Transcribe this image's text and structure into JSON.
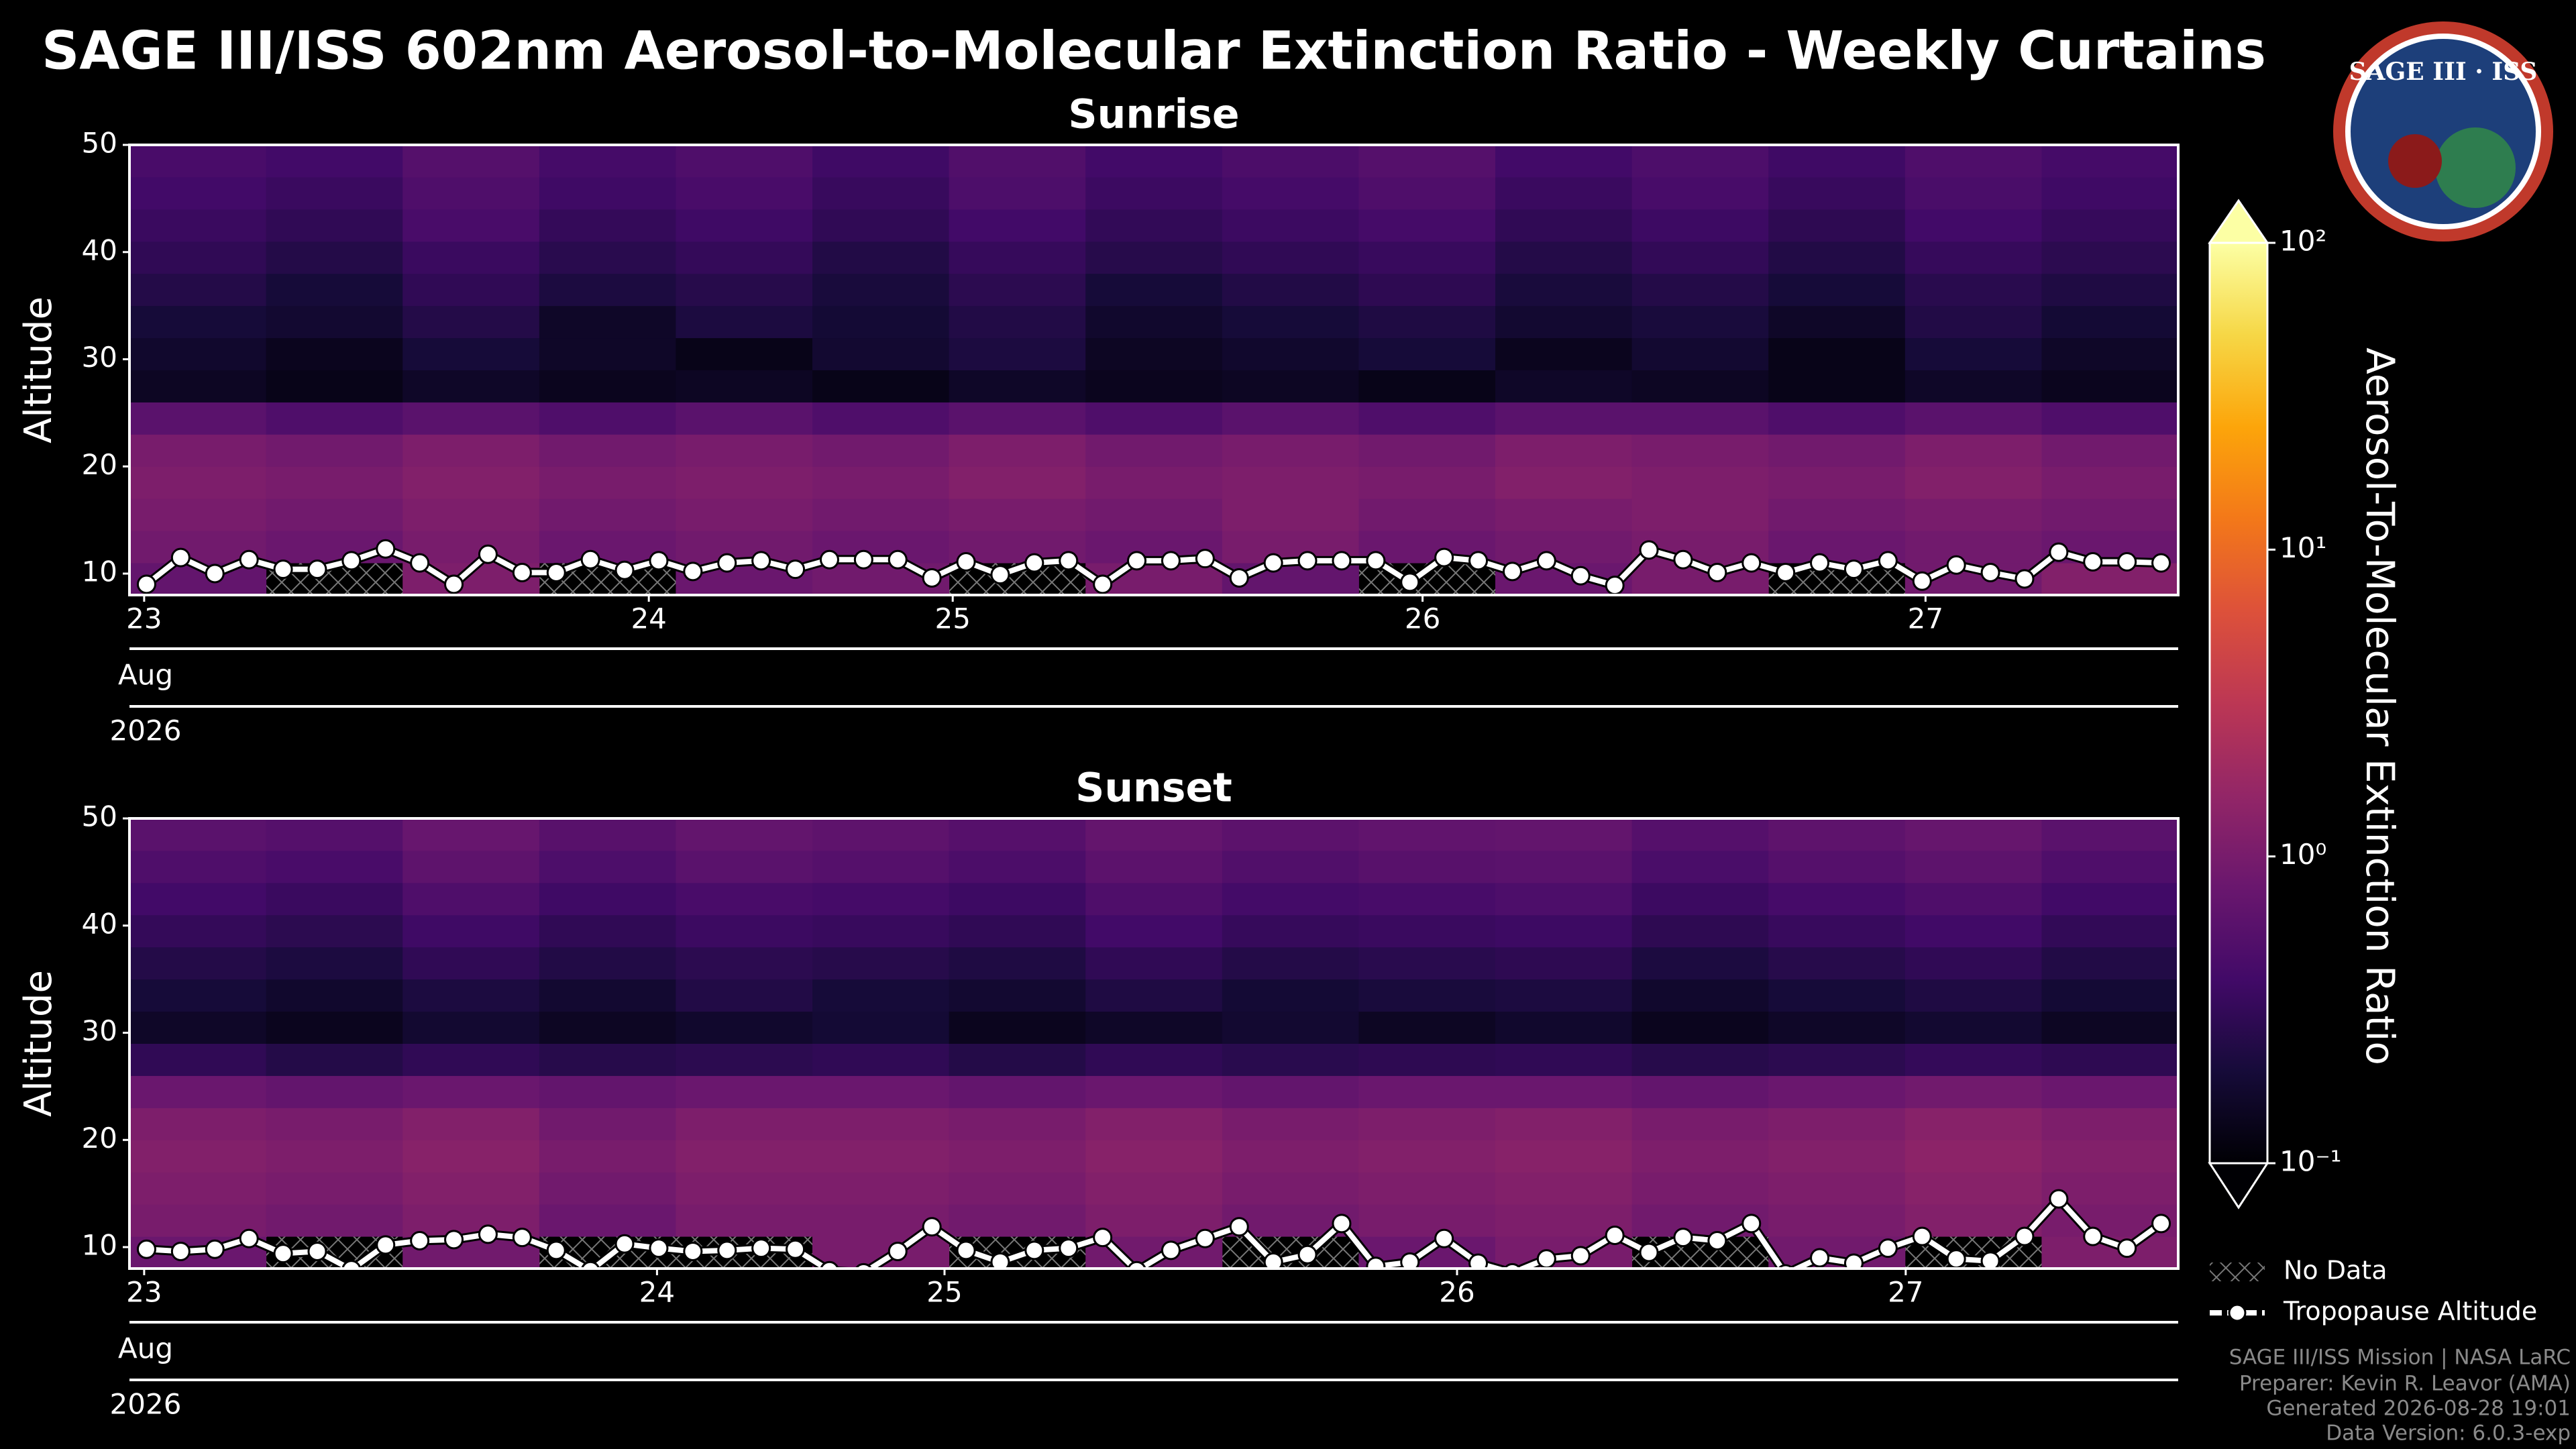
{
  "title": "SAGE III/ISS 602nm Aerosol-to-Molecular Extinction Ratio - Weekly Curtains",
  "logo": {
    "text": "SAGE III · ISS"
  },
  "colorbar": {
    "label": "Aerosol-To-Molecular Extinction Ratio",
    "colormap": "inferno",
    "scale": "log",
    "clim": [
      0.1,
      100
    ],
    "ticks": [
      {
        "value": 0.1,
        "label": "10⁻¹"
      },
      {
        "value": 1,
        "label": "10⁰"
      },
      {
        "value": 10,
        "label": "10¹"
      },
      {
        "value": 100,
        "label": "10²"
      }
    ]
  },
  "legend": {
    "no_data": "No Data"
  },
  "footer": [
    "SAGE III/ISS Mission | NASA LaRC",
    "Preparer: Kevin R. Leavor (AMA)",
    "Generated 2026-08-28 19:01",
    "Data Version: 6.0.3-exp"
  ],
  "chart_data": [
    {
      "type": "heatmap",
      "title": "Sunrise",
      "ylabel": "Altitude",
      "x_month_label": "Aug",
      "x_year_label": "2026",
      "xlim": [
        -0.5,
        59.5
      ],
      "xticks": [
        {
          "value": -0.07,
          "label": "23"
        },
        {
          "value": 14.71,
          "label": "24"
        },
        {
          "value": 23.61,
          "label": "25"
        },
        {
          "value": 37.37,
          "label": "26"
        },
        {
          "value": 52.1,
          "label": "27"
        }
      ],
      "ylim": [
        8,
        50
      ],
      "yticks": [
        10,
        20,
        30,
        40,
        50
      ],
      "x_bins": [
        -0.5,
        3.5,
        7.5,
        11.5,
        15.5,
        19.5,
        23.5,
        27.5,
        31.5,
        35.5,
        39.5,
        43.5,
        47.5,
        51.5,
        55.5,
        59.5
      ],
      "y_bins": [
        8,
        11,
        14,
        17,
        20,
        23,
        26,
        29,
        32,
        35,
        38,
        41,
        44,
        47,
        50
      ],
      "z": [
        [
          0.7,
          null,
          1.1,
          null,
          0.8,
          0.9,
          null,
          1.0,
          0.7,
          null,
          0.8,
          1.0,
          null,
          0.9,
          1.2
        ],
        [
          0.9,
          0.8,
          1.0,
          0.8,
          0.9,
          0.8,
          0.9,
          0.8,
          1.0,
          0.8,
          0.9,
          1.0,
          0.8,
          0.9,
          0.8
        ],
        [
          1.0,
          0.9,
          1.1,
          0.9,
          1.0,
          0.9,
          1.0,
          0.9,
          1.1,
          0.9,
          1.0,
          1.1,
          0.9,
          1.0,
          0.9
        ],
        [
          1.1,
          1.0,
          1.2,
          1.0,
          1.1,
          1.0,
          1.2,
          1.0,
          1.1,
          1.0,
          1.2,
          1.1,
          1.0,
          1.2,
          1.0
        ],
        [
          1.0,
          0.9,
          1.1,
          0.9,
          1.0,
          0.9,
          1.1,
          0.9,
          1.0,
          0.9,
          1.1,
          1.0,
          0.9,
          1.1,
          0.9
        ],
        [
          0.6,
          0.5,
          0.6,
          0.5,
          0.6,
          0.5,
          0.6,
          0.5,
          0.6,
          0.5,
          0.6,
          0.6,
          0.5,
          0.6,
          0.5
        ],
        [
          0.15,
          0.13,
          0.16,
          0.14,
          0.15,
          0.13,
          0.16,
          0.14,
          0.15,
          0.13,
          0.16,
          0.15,
          0.13,
          0.16,
          0.14
        ],
        [
          0.17,
          0.14,
          0.2,
          0.16,
          0.13,
          0.18,
          0.22,
          0.15,
          0.17,
          0.2,
          0.14,
          0.18,
          0.13,
          0.2,
          0.16
        ],
        [
          0.2,
          0.18,
          0.25,
          0.16,
          0.22,
          0.19,
          0.24,
          0.17,
          0.2,
          0.23,
          0.18,
          0.21,
          0.16,
          0.24,
          0.19
        ],
        [
          0.25,
          0.2,
          0.3,
          0.22,
          0.26,
          0.21,
          0.28,
          0.2,
          0.24,
          0.29,
          0.21,
          0.25,
          0.2,
          0.27,
          0.23
        ],
        [
          0.3,
          0.25,
          0.35,
          0.27,
          0.32,
          0.24,
          0.33,
          0.26,
          0.3,
          0.34,
          0.25,
          0.31,
          0.24,
          0.33,
          0.28
        ],
        [
          0.35,
          0.3,
          0.45,
          0.32,
          0.38,
          0.3,
          0.4,
          0.31,
          0.36,
          0.42,
          0.3,
          0.37,
          0.29,
          0.4,
          0.33
        ],
        [
          0.4,
          0.35,
          0.5,
          0.38,
          0.45,
          0.34,
          0.48,
          0.36,
          0.42,
          0.5,
          0.35,
          0.44,
          0.34,
          0.46,
          0.38
        ],
        [
          0.45,
          0.4,
          0.55,
          0.42,
          0.5,
          0.38,
          0.52,
          0.4,
          0.47,
          0.55,
          0.4,
          0.48,
          0.38,
          0.5,
          0.42
        ]
      ],
      "tropopause": {
        "name": "Tropopause Altitude",
        "color": "#ffffff",
        "values": [
          9,
          11.5,
          10,
          11.3,
          10.4,
          10.4,
          11.2,
          12.3,
          11,
          9,
          11.8,
          10.1,
          10.1,
          11.3,
          10.3,
          11.2,
          10.2,
          11,
          11.2,
          10.4,
          11.3,
          11.3,
          11.3,
          9.6,
          11.1,
          9.9,
          11,
          11.2,
          9,
          11.2,
          11.2,
          11.4,
          9.6,
          11,
          11.2,
          11.2,
          11.2,
          9.2,
          11.5,
          11.2,
          10.2,
          11.2,
          9.8,
          8.9,
          12.2,
          11.3,
          10.1,
          11,
          10.1,
          11,
          10.4,
          11.2,
          9.3,
          10.8,
          10.1,
          9.5,
          12,
          11.1,
          11.1,
          11
        ]
      }
    },
    {
      "type": "heatmap",
      "title": "Sunset",
      "ylabel": "Altitude",
      "x_month_label": "Aug",
      "x_year_label": "2026",
      "xlim": [
        -0.5,
        59.5
      ],
      "xticks": [
        {
          "value": -0.07,
          "label": "23"
        },
        {
          "value": 14.95,
          "label": "24"
        },
        {
          "value": 23.37,
          "label": "25"
        },
        {
          "value": 38.38,
          "label": "26"
        },
        {
          "value": 51.52,
          "label": "27"
        }
      ],
      "ylim": [
        8,
        50
      ],
      "yticks": [
        10,
        20,
        30,
        40,
        50
      ],
      "x_bins": [
        -0.5,
        3.5,
        7.5,
        11.5,
        15.5,
        19.5,
        23.5,
        27.5,
        31.5,
        35.5,
        39.5,
        43.5,
        47.5,
        51.5,
        55.5,
        59.5
      ],
      "y_bins": [
        8,
        11,
        14,
        17,
        20,
        23,
        26,
        29,
        32,
        35,
        38,
        41,
        44,
        47,
        50
      ],
      "z": [
        [
          0.8,
          null,
          0.9,
          null,
          null,
          1.0,
          null,
          0.9,
          null,
          0.8,
          1.0,
          null,
          0.9,
          null,
          1.1
        ],
        [
          1.0,
          0.9,
          1.1,
          0.8,
          1.0,
          1.0,
          0.9,
          1.1,
          0.9,
          1.0,
          1.1,
          0.9,
          1.0,
          1.2,
          1.0
        ],
        [
          1.1,
          1.0,
          1.2,
          0.9,
          1.1,
          1.1,
          1.0,
          1.2,
          1.0,
          1.1,
          1.2,
          1.0,
          1.1,
          1.3,
          1.1
        ],
        [
          1.2,
          1.1,
          1.3,
          1.0,
          1.2,
          1.2,
          1.1,
          1.3,
          1.1,
          1.2,
          1.3,
          1.1,
          1.2,
          1.4,
          1.2
        ],
        [
          1.1,
          1.0,
          1.2,
          0.9,
          1.1,
          1.1,
          1.0,
          1.2,
          1.0,
          1.1,
          1.2,
          1.0,
          1.1,
          1.3,
          1.1
        ],
        [
          0.8,
          0.7,
          0.8,
          0.7,
          0.8,
          0.8,
          0.7,
          0.8,
          0.7,
          0.8,
          0.8,
          0.7,
          0.8,
          0.9,
          0.8
        ],
        [
          0.3,
          0.25,
          0.3,
          0.26,
          0.28,
          0.3,
          0.25,
          0.3,
          0.27,
          0.29,
          0.3,
          0.26,
          0.28,
          0.32,
          0.29
        ],
        [
          0.16,
          0.14,
          0.18,
          0.15,
          0.17,
          0.19,
          0.14,
          0.16,
          0.18,
          0.15,
          0.17,
          0.14,
          0.16,
          0.18,
          0.15
        ],
        [
          0.2,
          0.17,
          0.22,
          0.18,
          0.24,
          0.2,
          0.18,
          0.23,
          0.19,
          0.21,
          0.22,
          0.17,
          0.2,
          0.23,
          0.19
        ],
        [
          0.25,
          0.22,
          0.3,
          0.24,
          0.28,
          0.26,
          0.23,
          0.3,
          0.25,
          0.27,
          0.29,
          0.22,
          0.26,
          0.3,
          0.24
        ],
        [
          0.32,
          0.28,
          0.38,
          0.3,
          0.36,
          0.34,
          0.3,
          0.4,
          0.33,
          0.35,
          0.37,
          0.29,
          0.34,
          0.39,
          0.31
        ],
        [
          0.4,
          0.35,
          0.5,
          0.38,
          0.45,
          0.42,
          0.37,
          0.5,
          0.41,
          0.44,
          0.48,
          0.36,
          0.43,
          0.5,
          0.39
        ],
        [
          0.5,
          0.45,
          0.65,
          0.48,
          0.6,
          0.55,
          0.47,
          0.62,
          0.52,
          0.58,
          0.6,
          0.46,
          0.55,
          0.64,
          0.5
        ],
        [
          0.6,
          0.55,
          0.75,
          0.58,
          0.7,
          0.65,
          0.56,
          0.72,
          0.62,
          0.68,
          0.7,
          0.55,
          0.65,
          0.74,
          0.6
        ]
      ],
      "tropopause": {
        "name": "Tropopause Altitude",
        "color": "#ffffff",
        "values": [
          9.8,
          9.6,
          9.8,
          10.8,
          9.4,
          9.6,
          7.9,
          10.2,
          10.6,
          10.7,
          11.2,
          10.9,
          9.7,
          7.8,
          10.3,
          9.9,
          9.6,
          9.7,
          9.9,
          9.8,
          7.8,
          7.6,
          9.6,
          11.9,
          9.7,
          8.6,
          9.7,
          9.9,
          10.9,
          7.8,
          9.7,
          10.8,
          11.9,
          8.6,
          9.3,
          12.2,
          8.2,
          8.6,
          10.8,
          8.5,
          7.6,
          8.9,
          9.2,
          11.1,
          9.5,
          10.9,
          10.6,
          12.2,
          7.5,
          9,
          8.5,
          9.9,
          11,
          8.9,
          8.7,
          11,
          14.5,
          11,
          9.9,
          12.2
        ]
      }
    }
  ]
}
